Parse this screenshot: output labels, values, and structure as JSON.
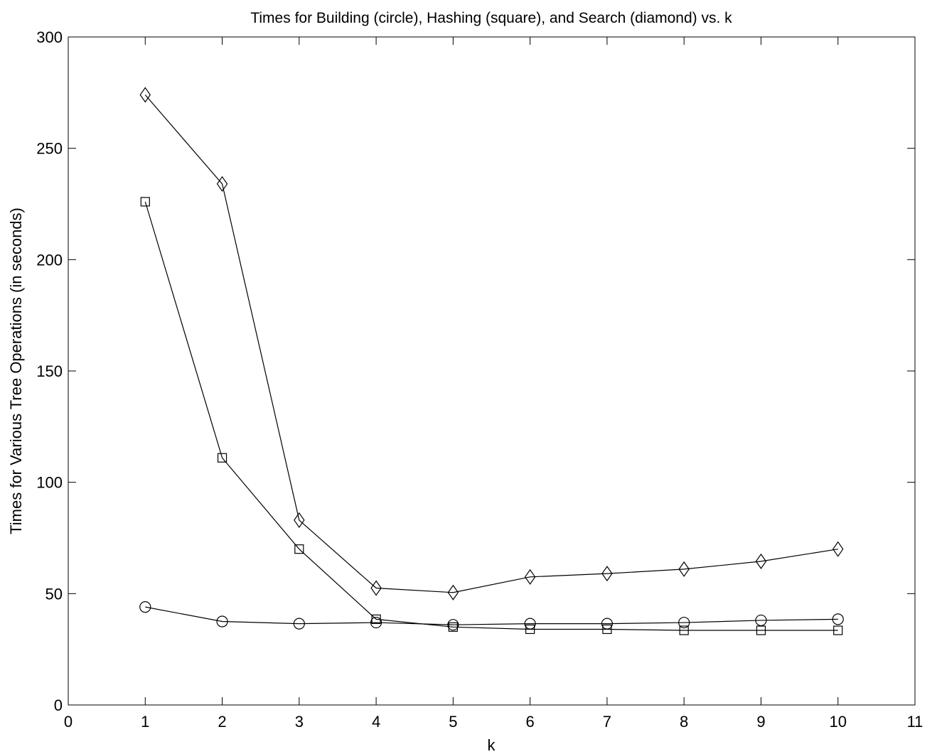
{
  "chart_data": {
    "type": "line",
    "title": "Times for Building (circle), Hashing (square), and Search (diamond) vs. k",
    "xlabel": "k",
    "ylabel": "Times for Various Tree Operations (in seconds)",
    "xlim": [
      0,
      11
    ],
    "ylim": [
      0,
      300
    ],
    "xticks": [
      "0",
      "1",
      "2",
      "3",
      "4",
      "5",
      "6",
      "7",
      "8",
      "9",
      "10",
      "11"
    ],
    "yticks": [
      "0",
      "50",
      "100",
      "150",
      "200",
      "250",
      "300"
    ],
    "grid": false,
    "legend": "none",
    "x": [
      1,
      2,
      3,
      4,
      5,
      6,
      7,
      8,
      9,
      10
    ],
    "series": [
      {
        "marker": "circle",
        "color": "#000000",
        "values": [
          44,
          37.5,
          36.5,
          37,
          36,
          36.5,
          36.5,
          37,
          38,
          38.5
        ]
      },
      {
        "marker": "square",
        "color": "#000000",
        "values": [
          226,
          111,
          70,
          38.5,
          35,
          34,
          34,
          33.5,
          33.5,
          33.5
        ]
      },
      {
        "marker": "diamond",
        "color": "#000000",
        "values": [
          274,
          234,
          83,
          52.5,
          50.5,
          57.5,
          59,
          61,
          64.5,
          70
        ]
      }
    ]
  }
}
